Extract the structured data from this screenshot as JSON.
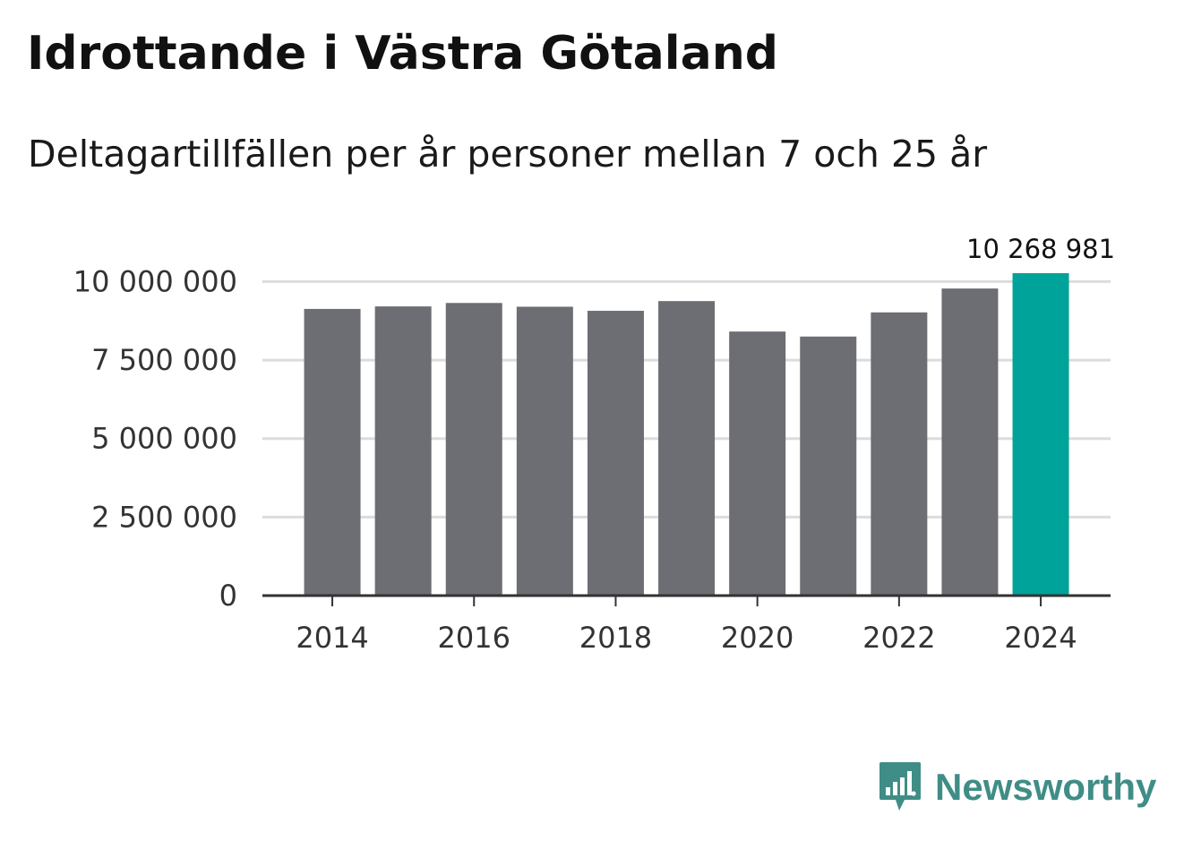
{
  "header": {
    "title": "Idrottande i Västra Götaland",
    "subtitle": "Deltagartillfällen per år personer mellan 7 och 25 år"
  },
  "brand": {
    "name": "Newsworthy",
    "icon": "bar-chart-speech-bubble-icon",
    "color": "#3f8d86"
  },
  "chart_data": {
    "type": "bar",
    "title": "Idrottande i Västra Götaland",
    "subtitle": "Deltagartillfällen per år personer mellan 7 och 25 år",
    "xlabel": "",
    "ylabel": "",
    "categories": [
      "2014",
      "2015",
      "2016",
      "2017",
      "2018",
      "2019",
      "2020",
      "2021",
      "2022",
      "2023",
      "2024"
    ],
    "values": [
      9130000,
      9210000,
      9320000,
      9200000,
      9070000,
      9380000,
      8410000,
      8250000,
      9020000,
      9780000,
      10268981
    ],
    "highlight_index": 10,
    "colors": {
      "bar": "#6d6d74",
      "highlight": "#00a399",
      "grid": "#dcdcdc",
      "axis": "#333333"
    },
    "ylim": [
      0,
      10268981
    ],
    "y_ticks": [
      {
        "value": 0,
        "label": "0"
      },
      {
        "value": 2500000,
        "label": "2 500 000"
      },
      {
        "value": 5000000,
        "label": "5 000 000"
      },
      {
        "value": 7500000,
        "label": "7 500 000"
      },
      {
        "value": 10000000,
        "label": "10 000 000"
      }
    ],
    "x_tick_labels": [
      "2014",
      "2016",
      "2018",
      "2020",
      "2022",
      "2024"
    ],
    "annotation": {
      "category": "2024",
      "label": "10 268 981"
    },
    "grid": true,
    "legend": "none"
  }
}
